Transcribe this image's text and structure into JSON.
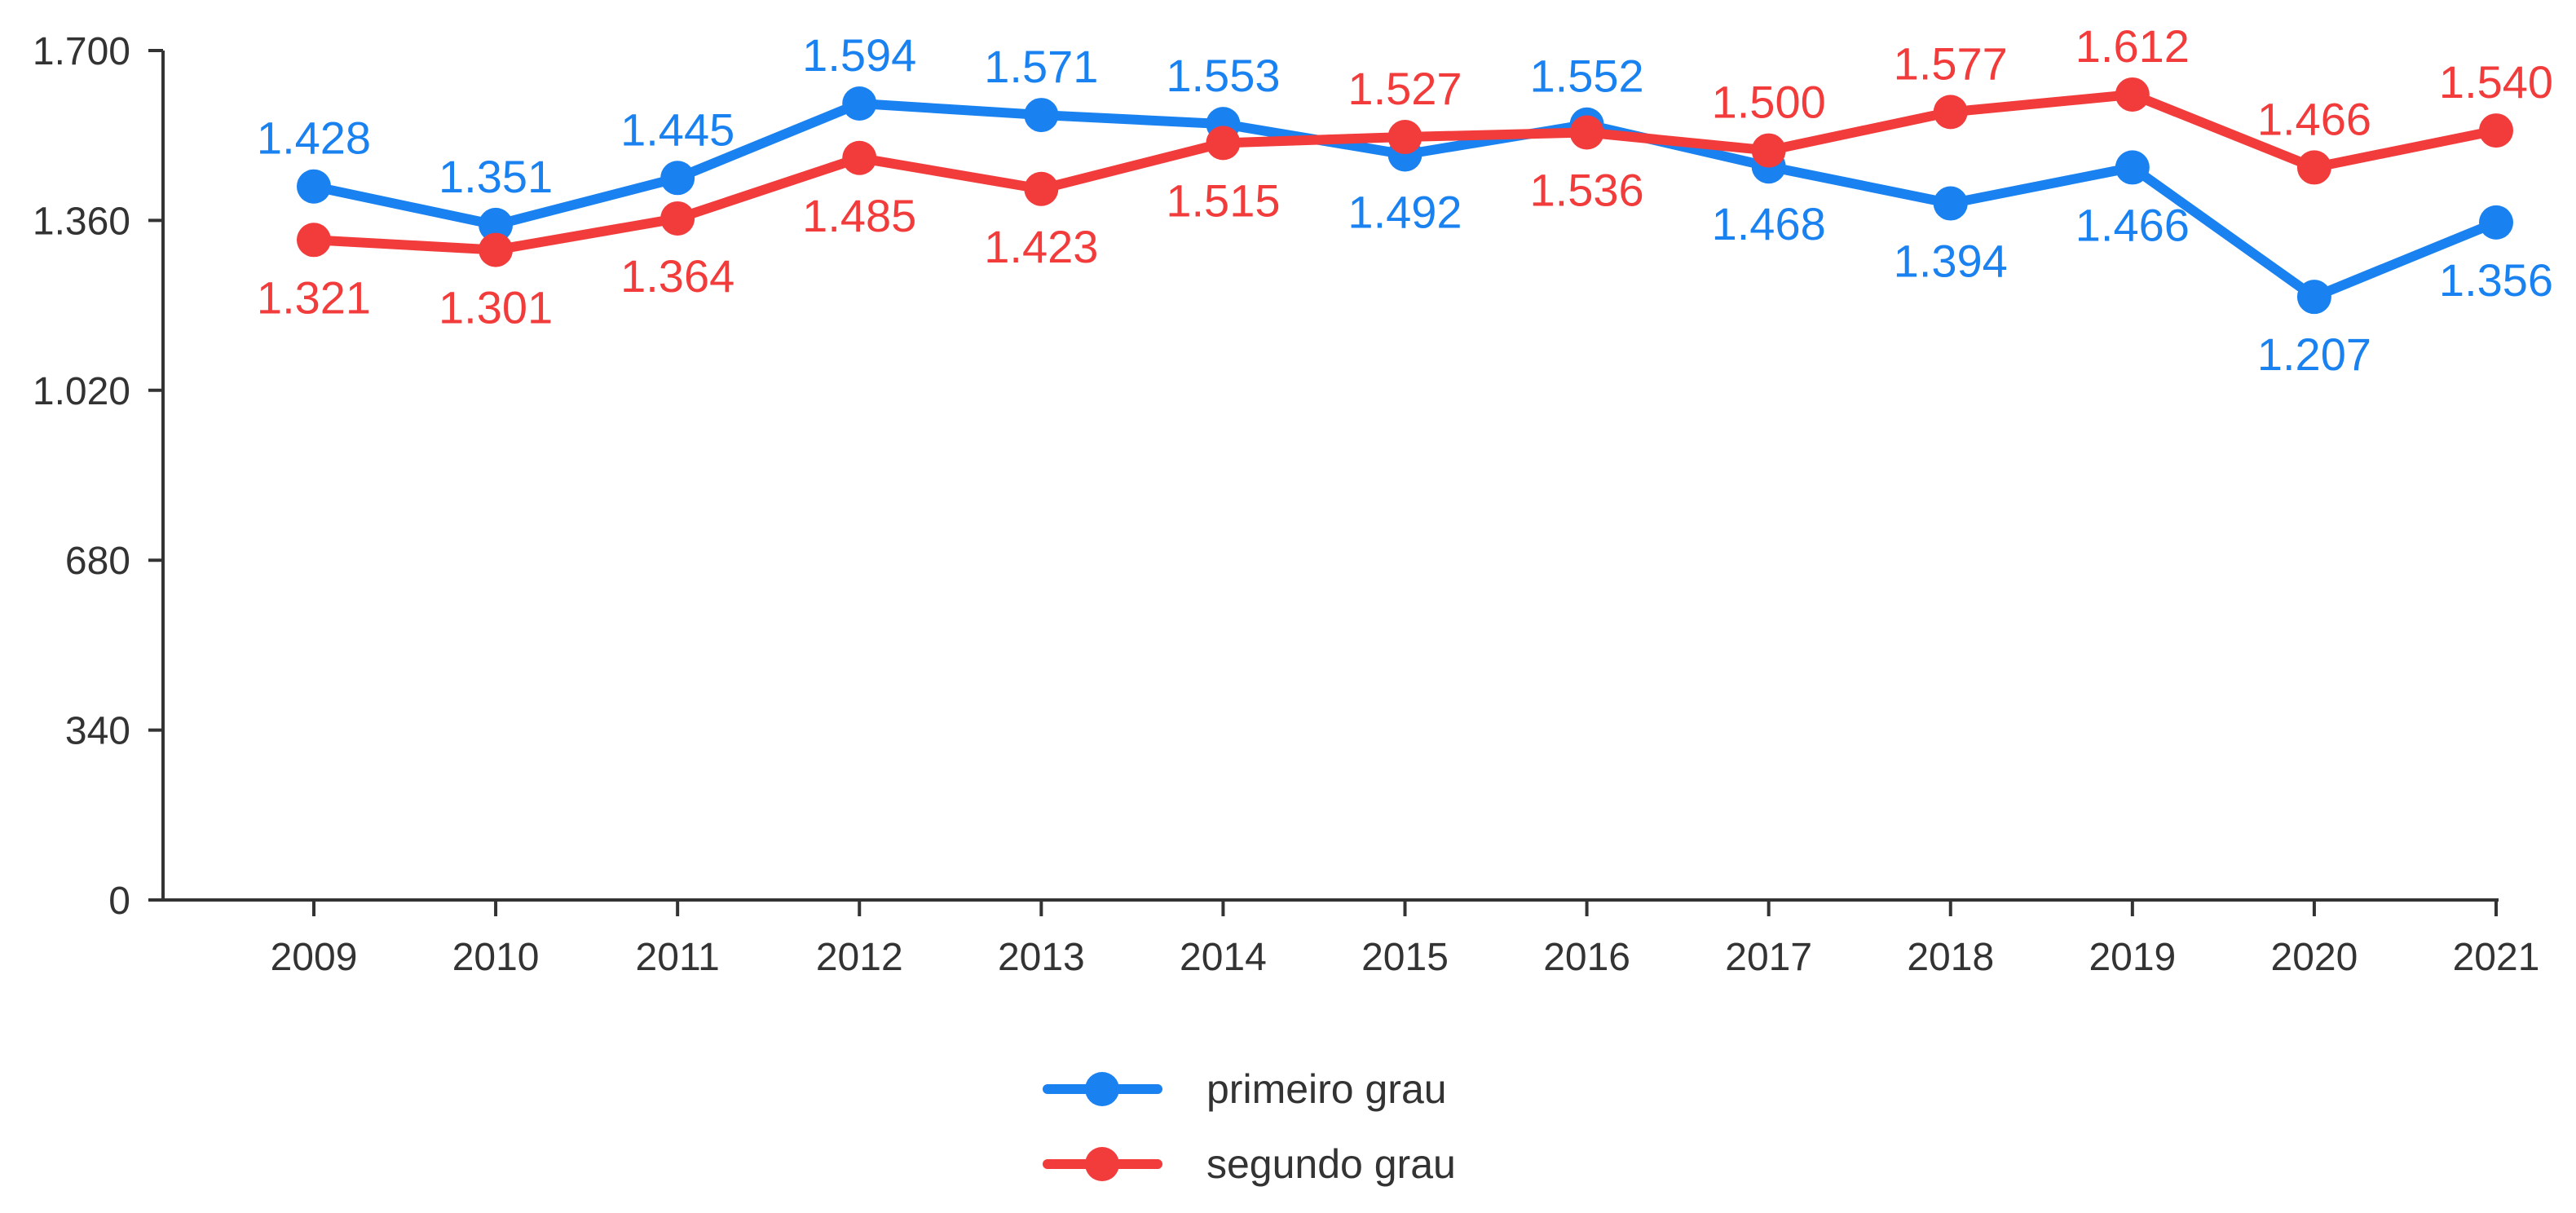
{
  "chart_data": {
    "type": "line",
    "title": "",
    "xlabel": "",
    "ylabel": "",
    "x": [
      "2009",
      "2010",
      "2011",
      "2012",
      "2013",
      "2014",
      "2015",
      "2016",
      "2017",
      "2018",
      "2019",
      "2020",
      "2021"
    ],
    "ylim": [
      0,
      1700
    ],
    "yticks": [
      0,
      340,
      680,
      1020,
      1360,
      1700
    ],
    "ytick_labels": [
      "0",
      "340",
      "680",
      "1.020",
      "1.360",
      "1.700"
    ],
    "grid": false,
    "legend_position": "bottom-center",
    "series": [
      {
        "name": "primeiro grau",
        "color": "#1a82f0",
        "values": [
          1428,
          1351,
          1445,
          1594,
          1571,
          1553,
          1492,
          1552,
          1468,
          1394,
          1466,
          1207,
          1356
        ],
        "labels": [
          "1.428",
          "1.351",
          "1.445",
          "1.594",
          "1.571",
          "1.553",
          "1.492",
          "1.552",
          "1.468",
          "1.394",
          "1.466",
          "1.207",
          "1.356"
        ],
        "label_side": [
          "above",
          "above",
          "above",
          "above",
          "above",
          "above",
          "below",
          "above",
          "below",
          "below",
          "below",
          "below",
          "below"
        ]
      },
      {
        "name": "segundo grau",
        "color": "#f23c3c",
        "values": [
          1321,
          1301,
          1364,
          1485,
          1423,
          1515,
          1527,
          1536,
          1500,
          1577,
          1612,
          1466,
          1540
        ],
        "labels": [
          "1.321",
          "1.301",
          "1.364",
          "1.485",
          "1.423",
          "1.515",
          "1.527",
          "1.536",
          "1.500",
          "1.577",
          "1.612",
          "1.466",
          "1.540"
        ],
        "label_side": [
          "below",
          "below",
          "below",
          "below",
          "below",
          "below",
          "above",
          "below",
          "above",
          "above",
          "above",
          "above",
          "above"
        ]
      }
    ]
  }
}
